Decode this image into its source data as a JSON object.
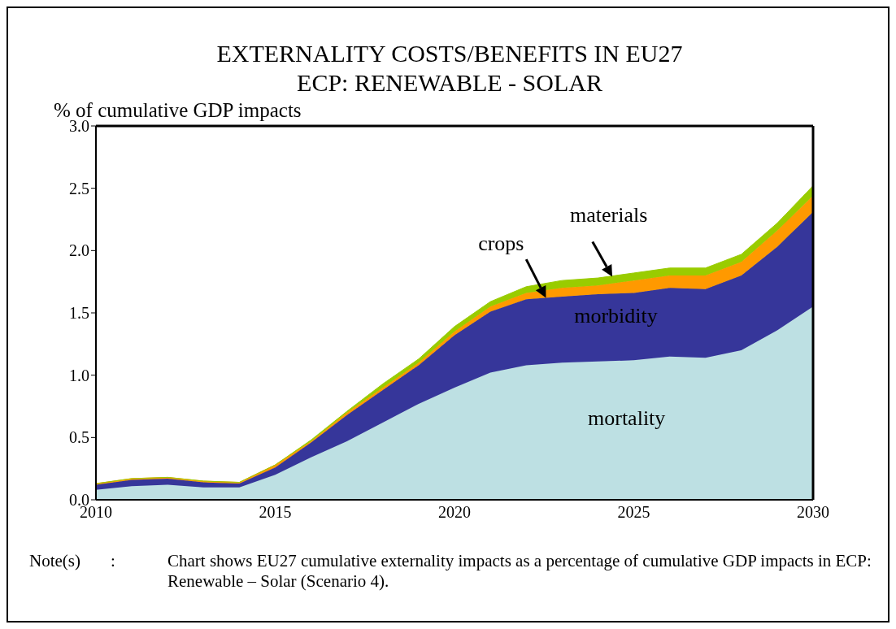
{
  "chart_data": {
    "type": "area",
    "stacked": true,
    "title": "EXTERNALITY COSTS/BENEFITS IN EU27\nECP: RENEWABLE - SOLAR",
    "ylabel": "% of cumulative GDP impacts",
    "x": [
      2010,
      2011,
      2012,
      2013,
      2014,
      2015,
      2016,
      2017,
      2018,
      2019,
      2020,
      2021,
      2022,
      2023,
      2024,
      2025,
      2026,
      2027,
      2028,
      2029,
      2030
    ],
    "series": [
      {
        "name": "mortality",
        "color": "#bde0e3",
        "values": [
          0.08,
          0.11,
          0.12,
          0.1,
          0.1,
          0.2,
          0.34,
          0.47,
          0.62,
          0.77,
          0.9,
          1.02,
          1.08,
          1.1,
          1.11,
          1.12,
          1.15,
          1.14,
          1.2,
          1.36,
          1.55
        ]
      },
      {
        "name": "morbidity",
        "color": "#36369a",
        "values": [
          0.04,
          0.05,
          0.05,
          0.04,
          0.03,
          0.06,
          0.12,
          0.21,
          0.26,
          0.31,
          0.42,
          0.49,
          0.53,
          0.53,
          0.54,
          0.54,
          0.55,
          0.55,
          0.6,
          0.67,
          0.76
        ]
      },
      {
        "name": "crops",
        "color": "#ff9900",
        "values": [
          0.01,
          0.01,
          0.01,
          0.01,
          0.01,
          0.02,
          0.01,
          0.02,
          0.02,
          0.02,
          0.03,
          0.04,
          0.05,
          0.07,
          0.07,
          0.1,
          0.1,
          0.11,
          0.11,
          0.13,
          0.13
        ]
      },
      {
        "name": "materials",
        "color": "#99cc00",
        "values": [
          0.0,
          0.0,
          0.0,
          0.0,
          0.0,
          0.0,
          0.01,
          0.01,
          0.03,
          0.03,
          0.04,
          0.04,
          0.05,
          0.06,
          0.06,
          0.06,
          0.06,
          0.06,
          0.06,
          0.06,
          0.08
        ]
      }
    ],
    "xlim": [
      2010,
      2030
    ],
    "xticks": [
      2010,
      2015,
      2020,
      2025,
      2030
    ],
    "ylim": [
      0,
      3
    ],
    "yticks": [
      {
        "value": 0,
        "label": "0.0"
      },
      {
        "value": 0.5,
        "label": "0.5"
      },
      {
        "value": 1,
        "label": "1.0"
      },
      {
        "value": 1.5,
        "label": "1.5"
      },
      {
        "value": 2,
        "label": "2.0"
      },
      {
        "value": 2.5,
        "label": "2.5"
      },
      {
        "value": 3,
        "label": "3.0"
      }
    ],
    "annotations": [
      "Note(s)\t:\tChart shows EU27 cumulative externality impacts as a percentage of cumulative GDP impacts in ECP: Renewable – Solar (Scenario 4)."
    ]
  }
}
